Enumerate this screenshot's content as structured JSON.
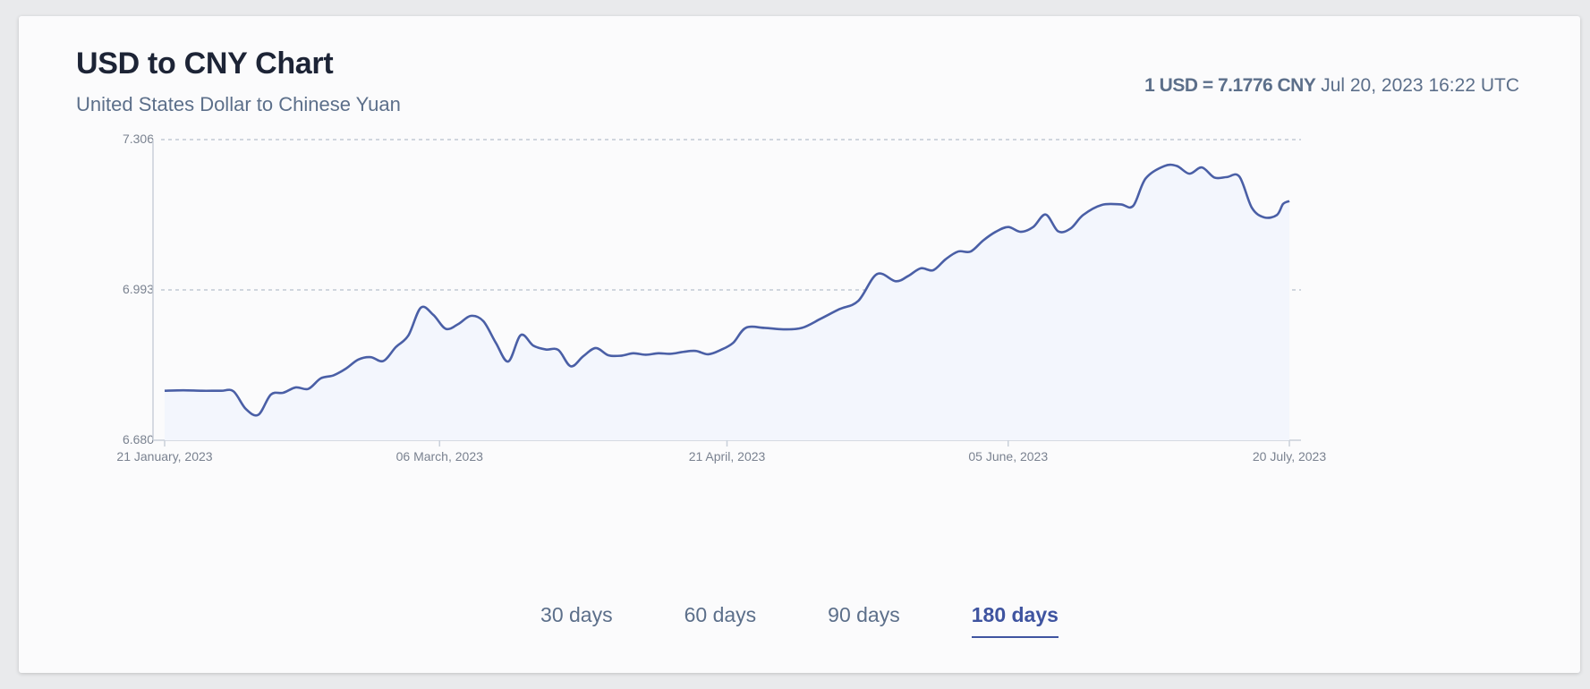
{
  "header": {
    "title": "USD to CNY Chart",
    "subtitle": "United States Dollar to Chinese Yuan",
    "rate_bold": "1 USD = 7.1776 CNY",
    "rate_time": "Jul 20, 2023 16:22 UTC"
  },
  "tabs": [
    {
      "label": "30 days",
      "active": false
    },
    {
      "label": "60 days",
      "active": false
    },
    {
      "label": "90 days",
      "active": false
    },
    {
      "label": "180 days",
      "active": true
    }
  ],
  "colors": {
    "line": "#4a5fa6",
    "area": "#f3f6fd",
    "grid": "#b7bfcc",
    "axis": "#c9d0da"
  },
  "chart_data": {
    "type": "area",
    "title": "USD to CNY Chart",
    "xlabel": "",
    "ylabel": "",
    "ylim": [
      6.68,
      7.306
    ],
    "y_ticks": [
      "6.680",
      "6.993",
      "7.306"
    ],
    "x_ticks": [
      "21 January, 2023",
      "06 March, 2023",
      "21 April, 2023",
      "05 June, 2023",
      "20 July, 2023"
    ],
    "grid": true,
    "x_range": [
      "2023-01-21",
      "2023-07-20"
    ],
    "series": [
      {
        "name": "",
        "x": [
          "2023-01-21",
          "2023-01-24",
          "2023-01-27",
          "2023-01-30",
          "2023-02-01",
          "2023-02-03",
          "2023-02-05",
          "2023-02-07",
          "2023-02-09",
          "2023-02-11",
          "2023-02-13",
          "2023-02-15",
          "2023-02-17",
          "2023-02-19",
          "2023-02-21",
          "2023-02-23",
          "2023-02-25",
          "2023-02-27",
          "2023-03-01",
          "2023-03-03",
          "2023-03-05",
          "2023-03-07",
          "2023-03-09",
          "2023-03-11",
          "2023-03-13",
          "2023-03-15",
          "2023-03-17",
          "2023-03-19",
          "2023-03-21",
          "2023-03-23",
          "2023-03-25",
          "2023-03-27",
          "2023-03-29",
          "2023-03-31",
          "2023-04-02",
          "2023-04-04",
          "2023-04-06",
          "2023-04-08",
          "2023-04-10",
          "2023-04-12",
          "2023-04-14",
          "2023-04-16",
          "2023-04-18",
          "2023-04-20",
          "2023-04-22",
          "2023-04-24",
          "2023-04-27",
          "2023-04-30",
          "2023-05-03",
          "2023-05-06",
          "2023-05-09",
          "2023-05-12",
          "2023-05-15",
          "2023-05-18",
          "2023-05-20",
          "2023-05-22",
          "2023-05-24",
          "2023-05-26",
          "2023-05-28",
          "2023-05-30",
          "2023-06-01",
          "2023-06-03",
          "2023-06-05",
          "2023-06-07",
          "2023-06-09",
          "2023-06-11",
          "2023-06-13",
          "2023-06-15",
          "2023-06-17",
          "2023-06-20",
          "2023-06-23",
          "2023-06-25",
          "2023-06-27",
          "2023-06-30",
          "2023-07-02",
          "2023-07-04",
          "2023-07-06",
          "2023-07-08",
          "2023-07-10",
          "2023-07-12",
          "2023-07-14",
          "2023-07-16",
          "2023-07-18",
          "2023-07-19",
          "2023-07-20"
        ],
        "values": [
          6.783,
          6.784,
          6.783,
          6.783,
          6.782,
          6.745,
          6.733,
          6.775,
          6.779,
          6.79,
          6.787,
          6.809,
          6.815,
          6.829,
          6.848,
          6.853,
          6.845,
          6.874,
          6.898,
          6.956,
          6.941,
          6.912,
          6.922,
          6.939,
          6.928,
          6.883,
          6.844,
          6.899,
          6.877,
          6.869,
          6.868,
          6.834,
          6.855,
          6.872,
          6.857,
          6.856,
          6.861,
          6.858,
          6.861,
          6.86,
          6.864,
          6.866,
          6.859,
          6.868,
          6.883,
          6.914,
          6.914,
          6.911,
          6.914,
          6.933,
          6.953,
          6.97,
          7.026,
          7.011,
          7.022,
          7.038,
          7.034,
          7.057,
          7.073,
          7.073,
          7.096,
          7.114,
          7.124,
          7.114,
          7.124,
          7.15,
          7.115,
          7.121,
          7.149,
          7.17,
          7.171,
          7.168,
          7.225,
          7.251,
          7.251,
          7.235,
          7.248,
          7.227,
          7.228,
          7.229,
          7.164,
          7.144,
          7.149,
          7.172,
          7.178
        ]
      }
    ]
  }
}
